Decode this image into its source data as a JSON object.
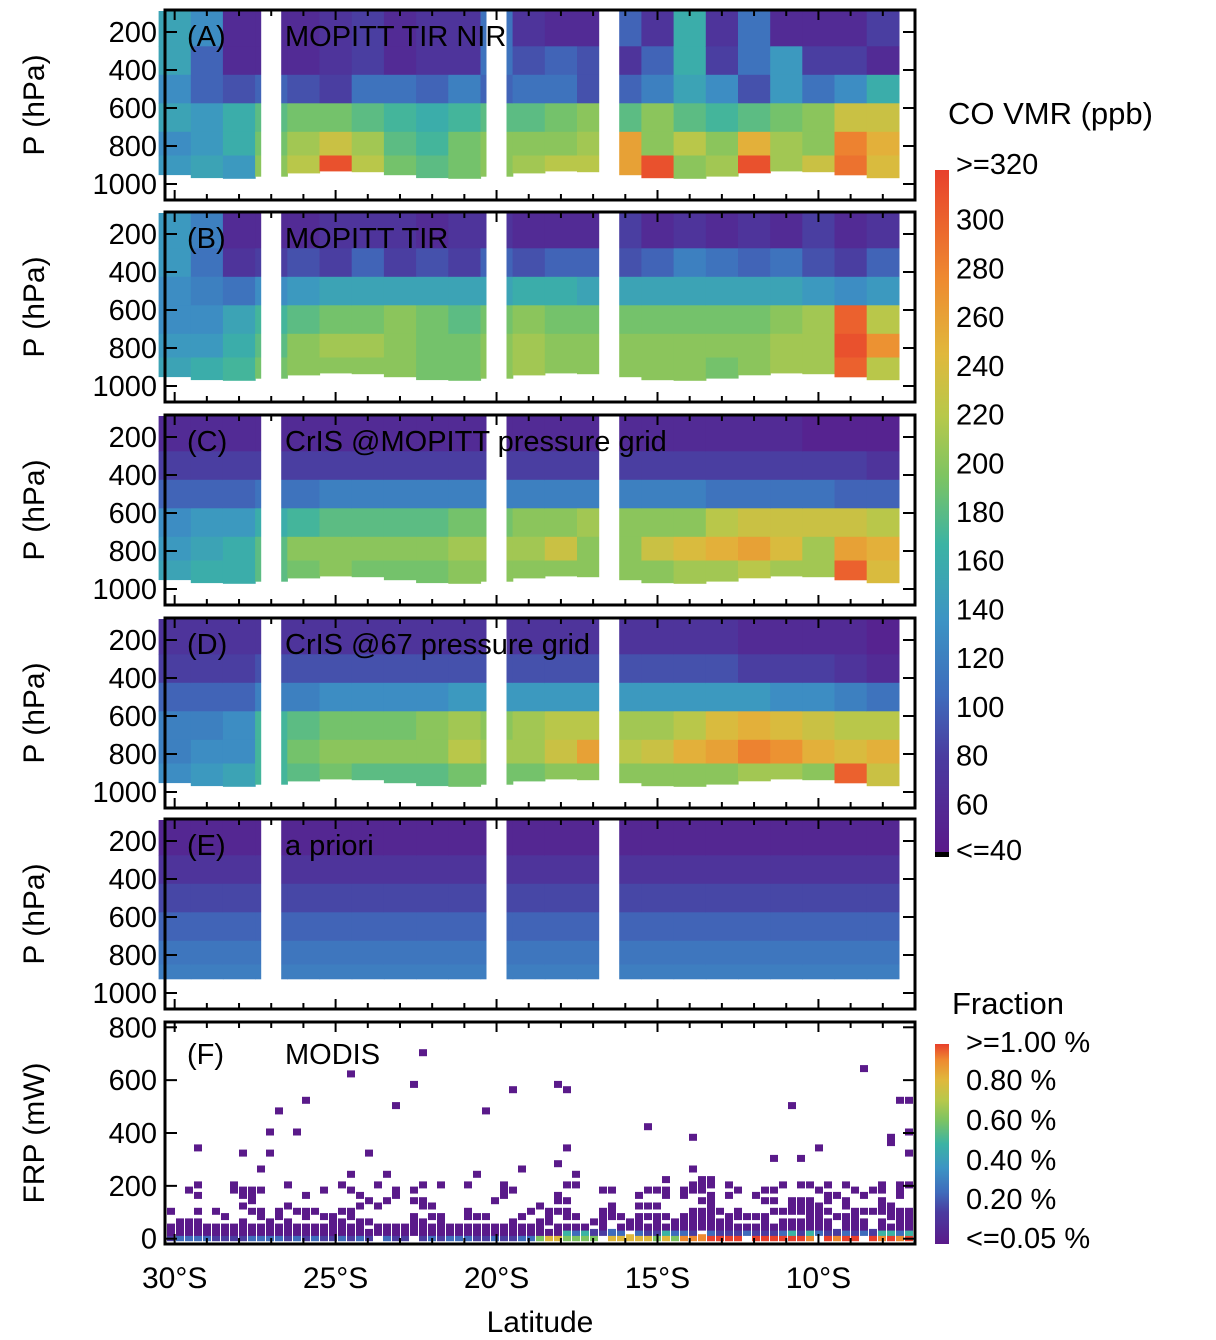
{
  "figure": {
    "xlabel": "Latitude",
    "ylabel_pressure": "P (hPa)",
    "ylabel_frp": "FRP (mW)"
  },
  "colorbar_co": {
    "title": "CO VMR (ppb)",
    "top_label": ">=320",
    "bottom_label": "<=40",
    "ticks": [
      "300",
      "280",
      "260",
      "240",
      "220",
      "200",
      "180",
      "160",
      "140",
      "120",
      "100",
      "80",
      "60"
    ],
    "range": [
      40,
      320
    ]
  },
  "colorbar_fraction": {
    "title": "Fraction",
    "labels": [
      ">=1.00 %",
      "0.80 %",
      "0.60 %",
      "0.40 %",
      "0.20 %",
      "<=0.05 %"
    ],
    "range": [
      0.05,
      1.0
    ]
  },
  "chart_data": [
    {
      "type": "heatmap",
      "panel_label": "(A)",
      "title": "MOPITT TIR NIR",
      "ylabel": "P (hPa)",
      "yticks": [
        200,
        400,
        600,
        800,
        1000
      ],
      "x": [
        -30,
        -29,
        -28,
        -27,
        -26,
        -25,
        -24,
        -23,
        -22,
        -21,
        -20,
        -19,
        -18,
        -17,
        -16,
        -15,
        -14,
        -13,
        -12,
        -11,
        -10,
        -9,
        -8
      ],
      "levels": [
        200,
        350,
        500,
        650,
        800,
        900
      ],
      "missing_latitudes": [
        -27,
        -20,
        -16.5
      ],
      "values": [
        [
          150,
          130,
          60,
          60,
          60,
          70,
          80,
          60,
          70,
          70,
          110,
          70,
          60,
          60,
          100,
          70,
          160,
          70,
          110,
          60,
          60,
          60,
          80
        ],
        [
          150,
          100,
          60,
          60,
          60,
          70,
          80,
          60,
          70,
          70,
          110,
          90,
          100,
          90,
          70,
          100,
          160,
          80,
          110,
          140,
          80,
          80,
          60
        ],
        [
          130,
          100,
          90,
          100,
          90,
          80,
          110,
          110,
          100,
          120,
          100,
          110,
          110,
          90,
          100,
          120,
          150,
          130,
          90,
          140,
          110,
          130,
          160
        ],
        [
          150,
          140,
          160,
          180,
          190,
          190,
          180,
          170,
          160,
          170,
          180,
          180,
          190,
          200,
          180,
          200,
          180,
          170,
          180,
          190,
          200,
          230,
          230
        ],
        [
          130,
          140,
          160,
          190,
          210,
          230,
          210,
          180,
          170,
          190,
          200,
          200,
          200,
          210,
          260,
          200,
          220,
          200,
          250,
          210,
          200,
          280,
          250
        ],
        [
          140,
          150,
          140,
          200,
          220,
          310,
          220,
          190,
          180,
          190,
          200,
          210,
          220,
          220,
          260,
          310,
          200,
          210,
          310,
          210,
          230,
          290,
          240
        ]
      ]
    },
    {
      "type": "heatmap",
      "panel_label": "(B)",
      "title": "MOPITT TIR",
      "ylabel": "P (hPa)",
      "yticks": [
        200,
        400,
        600,
        800,
        1000
      ],
      "x": [
        -30,
        -29,
        -28,
        -27,
        -26,
        -25,
        -24,
        -23,
        -22,
        -21,
        -20,
        -19,
        -18,
        -17,
        -16,
        -15,
        -14,
        -13,
        -12,
        -11,
        -10,
        -9,
        -8
      ],
      "levels": [
        200,
        350,
        500,
        650,
        800,
        900
      ],
      "missing_latitudes": [
        -27,
        -20,
        -16.5
      ],
      "values": [
        [
          140,
          120,
          60,
          60,
          60,
          70,
          70,
          70,
          60,
          70,
          70,
          60,
          60,
          60,
          80,
          60,
          70,
          60,
          70,
          60,
          80,
          60,
          70
        ],
        [
          140,
          110,
          70,
          80,
          90,
          80,
          100,
          80,
          90,
          80,
          100,
          90,
          100,
          100,
          90,
          100,
          120,
          110,
          100,
          110,
          90,
          80,
          100
        ],
        [
          130,
          120,
          110,
          130,
          140,
          150,
          150,
          150,
          150,
          150,
          150,
          160,
          160,
          150,
          150,
          150,
          150,
          150,
          150,
          150,
          140,
          130,
          140
        ],
        [
          130,
          130,
          150,
          170,
          180,
          190,
          190,
          200,
          190,
          180,
          190,
          200,
          190,
          190,
          190,
          190,
          190,
          190,
          190,
          200,
          210,
          300,
          220
        ],
        [
          140,
          140,
          160,
          180,
          200,
          210,
          210,
          200,
          190,
          190,
          200,
          210,
          200,
          200,
          200,
          200,
          200,
          200,
          200,
          210,
          210,
          310,
          270
        ],
        [
          150,
          160,
          170,
          190,
          200,
          200,
          200,
          200,
          190,
          190,
          200,
          210,
          200,
          200,
          200,
          200,
          200,
          190,
          200,
          210,
          210,
          300,
          220
        ]
      ]
    },
    {
      "type": "heatmap",
      "panel_label": "(C)",
      "title": "CrIS @MOPITT pressure grid",
      "ylabel": "P (hPa)",
      "yticks": [
        200,
        400,
        600,
        800,
        1000
      ],
      "x": [
        -30,
        -29,
        -28,
        -27,
        -26,
        -25,
        -24,
        -23,
        -22,
        -21,
        -20,
        -19,
        -18,
        -17,
        -16,
        -15,
        -14,
        -13,
        -12,
        -11,
        -10,
        -9,
        -8
      ],
      "levels": [
        200,
        350,
        500,
        650,
        800,
        900
      ],
      "missing_latitudes": [
        -27,
        -20,
        -16.5
      ],
      "values": [
        [
          60,
          60,
          60,
          60,
          60,
          60,
          60,
          60,
          60,
          60,
          60,
          60,
          60,
          60,
          60,
          60,
          60,
          60,
          60,
          60,
          50,
          50,
          50
        ],
        [
          80,
          80,
          80,
          80,
          80,
          80,
          80,
          80,
          80,
          80,
          80,
          80,
          80,
          80,
          80,
          80,
          80,
          80,
          80,
          80,
          80,
          80,
          70
        ],
        [
          100,
          100,
          100,
          110,
          110,
          120,
          120,
          120,
          120,
          120,
          120,
          120,
          120,
          120,
          120,
          120,
          120,
          110,
          110,
          110,
          110,
          100,
          100
        ],
        [
          130,
          140,
          140,
          160,
          170,
          180,
          180,
          180,
          180,
          190,
          190,
          200,
          200,
          210,
          200,
          200,
          200,
          220,
          230,
          230,
          230,
          230,
          220
        ],
        [
          140,
          150,
          160,
          180,
          200,
          200,
          200,
          200,
          200,
          210,
          210,
          210,
          230,
          200,
          200,
          230,
          240,
          250,
          260,
          240,
          210,
          260,
          250
        ],
        [
          150,
          160,
          160,
          180,
          190,
          200,
          190,
          190,
          190,
          200,
          200,
          200,
          200,
          200,
          200,
          200,
          210,
          210,
          220,
          210,
          210,
          300,
          240
        ]
      ]
    },
    {
      "type": "heatmap",
      "panel_label": "(D)",
      "title": "CrIS @67 pressure grid",
      "ylabel": "P (hPa)",
      "yticks": [
        200,
        400,
        600,
        800,
        1000
      ],
      "x": [
        -30,
        -29,
        -28,
        -27,
        -26,
        -25,
        -24,
        -23,
        -22,
        -21,
        -20,
        -19,
        -18,
        -17,
        -16,
        -15,
        -14,
        -13,
        -12,
        -11,
        -10,
        -9,
        -8
      ],
      "levels": [
        200,
        350,
        500,
        650,
        800,
        900
      ],
      "missing_latitudes": [
        -27,
        -20,
        -16.5
      ],
      "values": [
        [
          70,
          70,
          70,
          70,
          70,
          70,
          70,
          70,
          70,
          70,
          70,
          70,
          70,
          70,
          70,
          70,
          70,
          70,
          60,
          60,
          60,
          60,
          50
        ],
        [
          80,
          80,
          80,
          90,
          90,
          90,
          90,
          90,
          90,
          90,
          90,
          90,
          90,
          90,
          90,
          90,
          90,
          90,
          80,
          80,
          80,
          70,
          60
        ],
        [
          100,
          100,
          100,
          120,
          120,
          130,
          130,
          130,
          130,
          140,
          140,
          140,
          140,
          140,
          140,
          140,
          140,
          140,
          140,
          130,
          130,
          120,
          110
        ],
        [
          120,
          120,
          130,
          170,
          180,
          190,
          190,
          190,
          200,
          210,
          200,
          210,
          220,
          220,
          210,
          210,
          220,
          240,
          250,
          240,
          230,
          220,
          220
        ],
        [
          120,
          130,
          130,
          170,
          190,
          200,
          200,
          200,
          200,
          220,
          210,
          210,
          230,
          260,
          220,
          230,
          250,
          260,
          280,
          270,
          250,
          240,
          250
        ],
        [
          130,
          140,
          150,
          170,
          180,
          190,
          180,
          180,
          180,
          190,
          190,
          190,
          200,
          200,
          200,
          200,
          200,
          200,
          210,
          210,
          200,
          300,
          230
        ]
      ]
    },
    {
      "type": "heatmap",
      "panel_label": "(E)",
      "title": "a priori",
      "ylabel": "P (hPa)",
      "yticks": [
        200,
        400,
        600,
        800,
        1000
      ],
      "x": [
        -30,
        -29,
        -28,
        -27,
        -26,
        -25,
        -24,
        -23,
        -22,
        -21,
        -20,
        -19,
        -18,
        -17,
        -16,
        -15,
        -14,
        -13,
        -12,
        -11,
        -10,
        -9,
        -8
      ],
      "levels": [
        200,
        350,
        500,
        650,
        800,
        900
      ],
      "missing_latitudes": [
        -27,
        -20,
        -16.5
      ],
      "profile": [
        55,
        70,
        85,
        100,
        112,
        118
      ]
    },
    {
      "type": "heatmap",
      "panel_label": "(F)",
      "title": "MODIS",
      "ylabel": "FRP (mW)",
      "yticks": [
        0,
        200,
        400,
        600,
        800
      ],
      "xticks": [
        "30°S",
        "25°S",
        "20°S",
        "15°S",
        "10°S"
      ],
      "xlim": [
        -30.3,
        -7
      ],
      "ylim": [
        -20,
        820
      ],
      "colorbar": "colorbar_fraction"
    }
  ]
}
